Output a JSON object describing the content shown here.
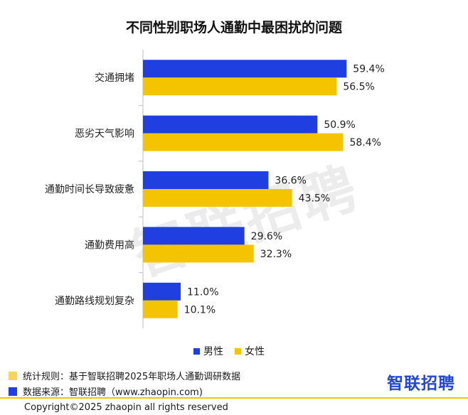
{
  "chart_data": {
    "type": "bar",
    "orientation": "horizontal",
    "title": "不同性别职场人通勤中最困扰的问题",
    "categories": [
      "交通拥堵",
      "恶劣天气影响",
      "通勤时间长导致疲惫",
      "通勤费用高",
      "通勤路线规划复杂"
    ],
    "series": [
      {
        "name": "男性",
        "color": "#1f3fe0",
        "values": [
          59.4,
          50.9,
          36.6,
          29.6,
          11.0
        ]
      },
      {
        "name": "女性",
        "color": "#f5c400",
        "values": [
          56.5,
          58.4,
          43.5,
          32.3,
          10.1
        ]
      }
    ],
    "value_labels": {
      "男性": [
        "59.4%",
        "50.9%",
        "36.6%",
        "29.6%",
        "11.0%"
      ],
      "女性": [
        "56.5%",
        "58.4%",
        "43.5%",
        "32.3%",
        "10.1%"
      ]
    },
    "xlim": [
      0,
      100
    ],
    "legend_position": "bottom",
    "grid": false
  },
  "legend": {
    "male": "男性",
    "female": "女性"
  },
  "watermark": "智联招聘",
  "footer": {
    "rule_text": "统计规则：基于智联招聘2025年职场人通勤调研数据",
    "source_text": "数据来源：智联招聘（www.zhaopin.com)",
    "logo_text": "智联招聘",
    "copyright": "Copyright©2025 zhaopin all rights reserved"
  },
  "colors": {
    "male": "#1f3fe0",
    "female": "#f5c400",
    "rule_square": "#f9d65a",
    "source_square": "#1f3fe0"
  }
}
